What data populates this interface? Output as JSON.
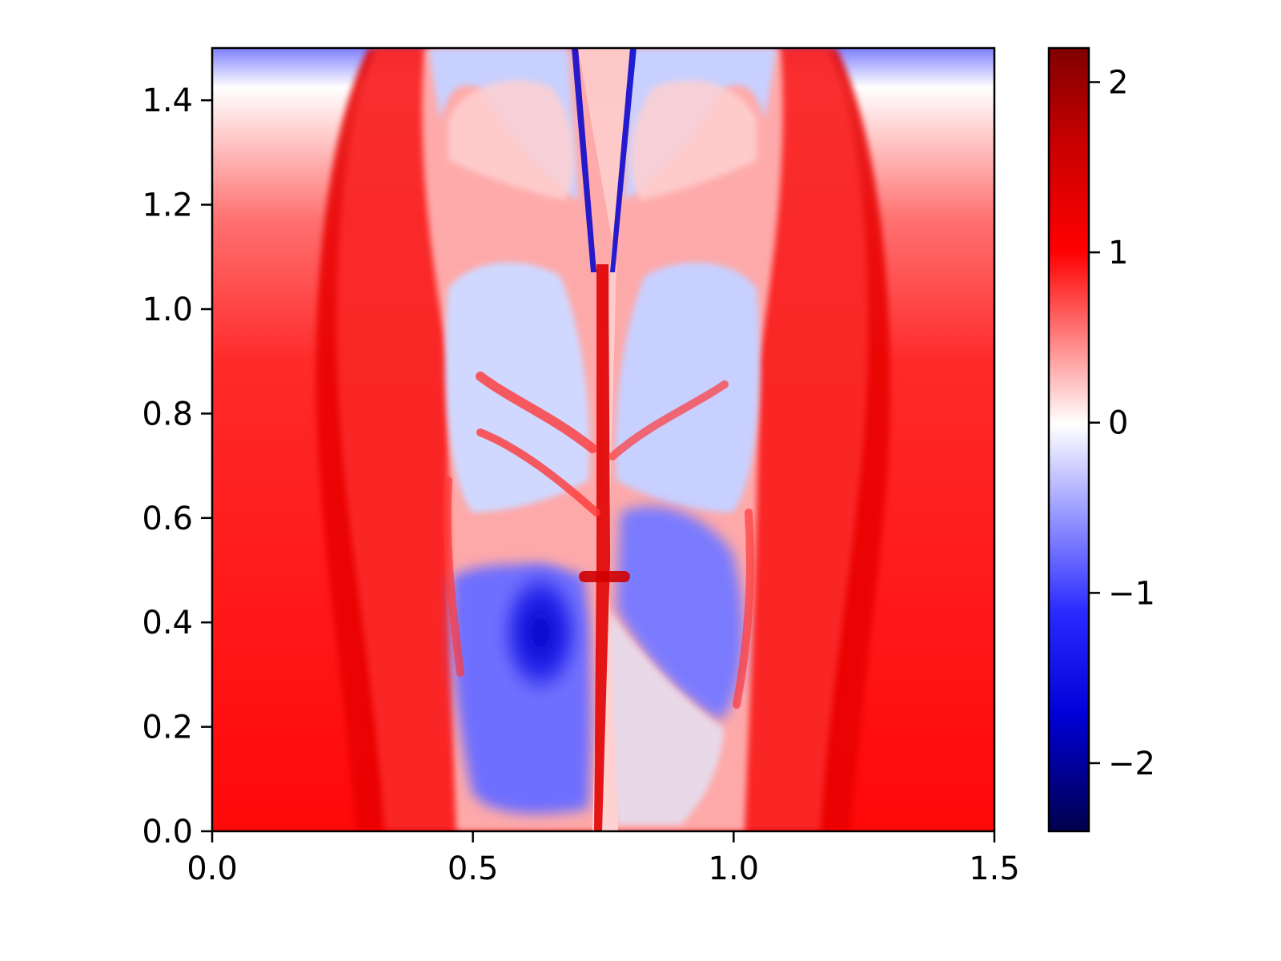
{
  "chart_data": {
    "type": "heatmap",
    "title": "",
    "xlabel": "",
    "ylabel": "",
    "xlim": [
      0.0,
      1.5
    ],
    "ylim": [
      0.0,
      1.5
    ],
    "x_ticks": [
      "0.0",
      "0.5",
      "1.0",
      "1.5"
    ],
    "x_tick_values": [
      0.0,
      0.5,
      1.0,
      1.5
    ],
    "y_ticks": [
      "0.0",
      "0.2",
      "0.4",
      "0.6",
      "0.8",
      "1.0",
      "1.2",
      "1.4"
    ],
    "y_tick_values": [
      0.0,
      0.2,
      0.4,
      0.6,
      0.8,
      1.0,
      1.2,
      1.4
    ],
    "colorbar": {
      "colormap": "seismic",
      "range": [
        -2.4,
        2.2
      ],
      "ticks": [
        "2",
        "1",
        "0",
        "−1",
        "−2"
      ],
      "tick_values": [
        2,
        1,
        0,
        -1,
        -2
      ],
      "colors": {
        "min": "#00004c",
        "low": "#0000ff",
        "mid": "#ffffff",
        "high": "#ff0000",
        "max": "#800000"
      }
    },
    "field_description_regions": [
      {
        "name": "background",
        "value": 1.1
      },
      {
        "name": "top-band",
        "value": -0.2
      },
      {
        "name": "central-jet",
        "value": 0.3
      },
      {
        "name": "inner-lobes",
        "value": -0.4
      },
      {
        "name": "deep-blue-core",
        "value": -1.6
      }
    ],
    "grid": false
  }
}
